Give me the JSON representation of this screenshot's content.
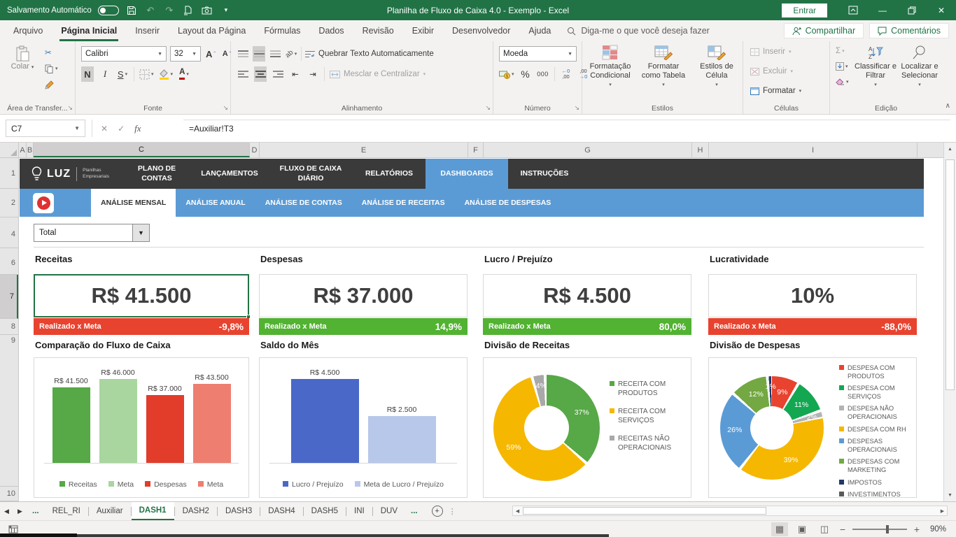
{
  "titlebar": {
    "autosave_label": "Salvamento Automático",
    "title": "Planilha de Fluxo de Caixa 4.0  -  Exemplo  -  Excel",
    "signin_label": "Entrar"
  },
  "menubar": {
    "tabs": [
      "Arquivo",
      "Página Inicial",
      "Inserir",
      "Layout da Página",
      "Fórmulas",
      "Dados",
      "Revisão",
      "Exibir",
      "Desenvolvedor",
      "Ajuda"
    ],
    "active_tab": "Página Inicial",
    "search_placeholder": "Diga-me o que você deseja fazer",
    "share_label": "Compartilhar",
    "comments_label": "Comentários"
  },
  "ribbon": {
    "groups": [
      "Área de Transfer...",
      "Fonte",
      "Alinhamento",
      "Número",
      "Estilos",
      "Células",
      "Edição"
    ],
    "paste_label": "Colar",
    "font_name": "Calibri",
    "font_size": "32",
    "bold_label": "N",
    "italic_label": "I",
    "underline_label": "S",
    "wrap_label": "Quebrar Texto Automaticamente",
    "merge_label": "Mesclar e Centralizar",
    "number_format": "Moeda",
    "percent_label": "%",
    "thousands_label": "000",
    "cond_format_label": "Formatação Condicional",
    "format_table_label": "Formatar como Tabela",
    "cell_styles_label": "Estilos de Célula",
    "insert_label": "Inserir",
    "delete_label": "Excluir",
    "format_label": "Formatar",
    "sort_filter_label": "Classificar e Filtrar",
    "find_select_label": "Localizar e Selecionar"
  },
  "formula_bar": {
    "cell_ref": "C7",
    "fx_label": "fx",
    "formula": "=Auxiliar!T3"
  },
  "grid": {
    "col_headers": [
      "A",
      "B",
      "C",
      "D",
      "E",
      "F",
      "G",
      "H",
      "I"
    ],
    "selected_col": "C",
    "row_headers": [
      "1",
      "2",
      "4",
      "6",
      "7",
      "8",
      "9",
      "10"
    ],
    "selected_row": "7"
  },
  "dashboard": {
    "logo_brand": "LUZ",
    "logo_sub_line1": "Planilhas",
    "logo_sub_line2": "Empresariais",
    "main_nav": [
      {
        "label": "PLANO DE CONTAS",
        "active": false
      },
      {
        "label": "LANÇAMENTOS",
        "active": false
      },
      {
        "label": "FLUXO DE CAIXA DIÁRIO",
        "active": false
      },
      {
        "label": "RELATÓRIOS",
        "active": false
      },
      {
        "label": "DASHBOARDS",
        "active": true
      },
      {
        "label": "INSTRUÇÕES",
        "active": false
      }
    ],
    "sub_nav": [
      {
        "label": "ANÁLISE MENSAL",
        "active": true
      },
      {
        "label": "ANÁLISE ANUAL",
        "active": false
      },
      {
        "label": "ANÁLISE DE CONTAS",
        "active": false
      },
      {
        "label": "ANÁLISE DE RECEITAS",
        "active": false
      },
      {
        "label": "ANÁLISE DE DESPESAS",
        "active": false
      }
    ],
    "filter_value": "Total",
    "kpis": [
      {
        "title": "Receitas",
        "value": "R$ 41.500",
        "meta_label": "Realizado x Meta",
        "meta_value": "-9,8%",
        "meta_color": "#e8432f",
        "selected": true
      },
      {
        "title": "Despesas",
        "value": "R$ 37.000",
        "meta_label": "Realizado x Meta",
        "meta_value": "14,9%",
        "meta_color": "#52b232",
        "selected": false
      },
      {
        "title": "Lucro / Prejuízo",
        "value": "R$ 4.500",
        "meta_label": "Realizado x Meta",
        "meta_value": "80,0%",
        "meta_color": "#52b232",
        "selected": false
      },
      {
        "title": "Lucratividade",
        "value": "10%",
        "meta_label": "Realizado x Meta",
        "meta_value": "-88,0%",
        "meta_color": "#e8432f",
        "selected": false
      }
    ]
  },
  "chart_data": [
    {
      "type": "bar",
      "title": "Comparação do Fluxo de Caixa",
      "categories": [
        "Receitas",
        "Meta",
        "Despesas",
        "Meta"
      ],
      "values": [
        41500,
        46000,
        37000,
        43500
      ],
      "labels": [
        "R$ 41.500",
        "R$ 46.000",
        "R$ 37.000",
        "R$ 43.500"
      ],
      "colors": [
        "#57a846",
        "#a9d69f",
        "#e23c2b",
        "#ee7e70"
      ],
      "ylim": [
        0,
        46000
      ],
      "grid": false,
      "legend_position": "bottom",
      "legend": [
        {
          "label": "Receitas",
          "color": "#57a846"
        },
        {
          "label": "Meta",
          "color": "#a9d69f"
        },
        {
          "label": "Despesas",
          "color": "#e23c2b"
        },
        {
          "label": "Meta",
          "color": "#ee7e70"
        }
      ]
    },
    {
      "type": "bar",
      "title": "Saldo do Mês",
      "categories": [
        "Lucro / Prejuízo",
        "Meta de Lucro / Prejuízo"
      ],
      "values": [
        4500,
        2500
      ],
      "labels": [
        "R$ 4.500",
        "R$ 2.500"
      ],
      "colors": [
        "#4a68c8",
        "#b8c8ea"
      ],
      "ylim": [
        0,
        4500
      ],
      "grid": false,
      "legend_position": "bottom",
      "legend": [
        {
          "label": "Lucro / Prejuízo",
          "color": "#4a68c8"
        },
        {
          "label": "Meta de Lucro / Prejuízo",
          "color": "#b8c8ea"
        }
      ]
    },
    {
      "type": "pie",
      "donut": true,
      "title": "Divisão de Receitas",
      "legend_position": "right",
      "slices": [
        {
          "label": "RECEITA COM PRODUTOS",
          "pct": 37,
          "color": "#57a846",
          "data_label": "37%"
        },
        {
          "label": "RECEITA COM SERVIÇOS",
          "pct": 59,
          "color": "#f5b700",
          "data_label": "59%"
        },
        {
          "label": "RECEITAS NÃO OPERACIONAIS",
          "pct": 4,
          "color": "#a9a9a9",
          "data_label": "4%"
        }
      ]
    },
    {
      "type": "pie",
      "donut": true,
      "title": "Divisão de Despesas",
      "legend_position": "right",
      "slices": [
        {
          "label": "DESPESA COM PRODUTOS",
          "pct": 9,
          "color": "#e8432f",
          "data_label": "9%"
        },
        {
          "label": "DESPESA COM SERVIÇOS",
          "pct": 11,
          "color": "#13a752",
          "data_label": "11%"
        },
        {
          "label": "DESPESA NÃO OPERACIONAIS",
          "pct": 2,
          "color": "#b3b3b3",
          "data_label": "2%"
        },
        {
          "label": "DESPESA COM RH",
          "pct": 39,
          "color": "#f5b700",
          "data_label": "39%"
        },
        {
          "label": "DESPESAS OPERACIONAIS",
          "pct": 26,
          "color": "#5b9bd5",
          "data_label": "26%"
        },
        {
          "label": "DESPESAS COM MARKETING",
          "pct": 12,
          "color": "#73a842",
          "data_label": "12%"
        },
        {
          "label": "IMPOSTOS",
          "pct": 1,
          "color": "#1f3864",
          "data_label": "1%"
        },
        {
          "label": "INVESTIMENTOS",
          "pct": 0,
          "color": "#595959",
          "data_label": ""
        }
      ]
    }
  ],
  "sheet_tabs": {
    "overflow_left": "...",
    "tabs": [
      "REL_RI",
      "Auxiliar",
      "DASH1",
      "DASH2",
      "DASH3",
      "DASH4",
      "DASH5",
      "INI",
      "DUV"
    ],
    "overflow_right": "...",
    "active": "DASH1"
  },
  "status_bar": {
    "zoom_level": "90%"
  }
}
